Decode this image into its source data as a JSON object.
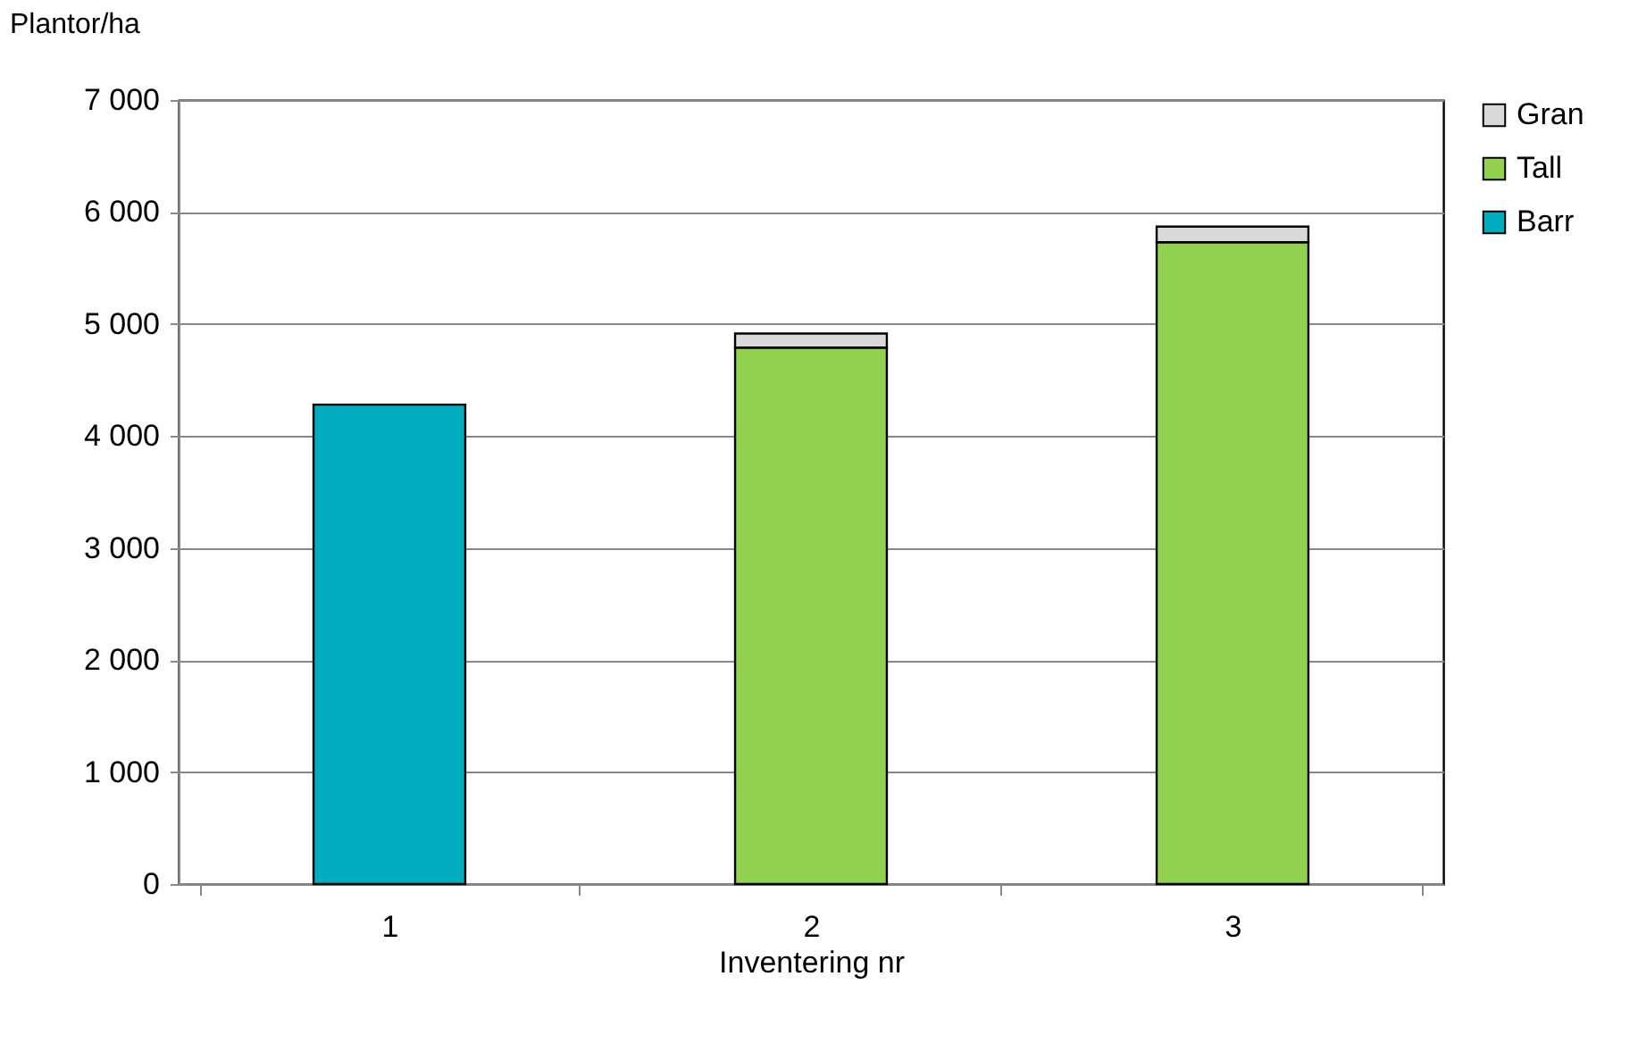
{
  "chart_data": {
    "type": "bar",
    "stacked": true,
    "ylabel": "Plantor/ha",
    "xlabel": "Inventering nr",
    "categories": [
      "1",
      "2",
      "3"
    ],
    "series": [
      {
        "name": "Barr",
        "color": "#00acbd",
        "values": [
          4280,
          null,
          null
        ]
      },
      {
        "name": "Tall",
        "color": "#92d050",
        "values": [
          null,
          4790,
          5730
        ]
      },
      {
        "name": "Gran",
        "color": "#d9d9d9",
        "values": [
          null,
          125,
          140
        ]
      }
    ],
    "ylim": [
      0,
      7000
    ],
    "yticks": [
      {
        "value": 0,
        "label": "0"
      },
      {
        "value": 1000,
        "label": "1 000"
      },
      {
        "value": 2000,
        "label": "2 000"
      },
      {
        "value": 3000,
        "label": "3 000"
      },
      {
        "value": 4000,
        "label": "4 000"
      },
      {
        "value": 5000,
        "label": "5 000"
      },
      {
        "value": 6000,
        "label": "6 000"
      },
      {
        "value": 7000,
        "label": "7 000"
      }
    ],
    "grid": "y",
    "legend": "right"
  }
}
